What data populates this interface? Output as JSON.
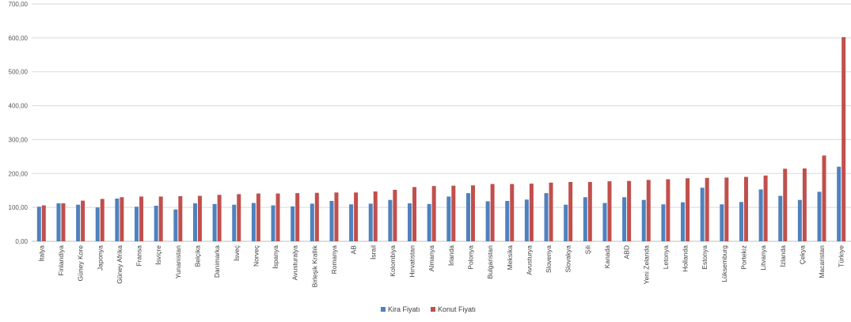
{
  "chart_data": {
    "type": "bar",
    "title": "",
    "xlabel": "",
    "ylabel": "",
    "ylim": [
      0,
      700
    ],
    "yticks": [
      "0,00",
      "100,00",
      "200,00",
      "300,00",
      "400,00",
      "500,00",
      "600,00",
      "700,00"
    ],
    "grid": true,
    "legend_position": "bottom",
    "categories": [
      "İtalya",
      "Finlandiya",
      "Güney Kore",
      "Japonya",
      "Güney Afrika",
      "Fransa",
      "İsviçre",
      "Yunanistan",
      "Belçika",
      "Danimarka",
      "İsveç",
      "Norveç",
      "İspanya",
      "Avusturalya",
      "Birleşik Krallık",
      "Romanya",
      "AB",
      "İsrail",
      "Kolombiya",
      "Hırvatistan",
      "Almanya",
      "İrlanda",
      "Polonya",
      "Bulgaristan",
      "Meksika",
      "Avusturya",
      "Slovenya",
      "Slovakya",
      "Şili",
      "Kanada",
      "ABD",
      "Yeni Zelanda",
      "Letonya",
      "Hollanda",
      "Estonya",
      "Lüksemburg",
      "Portekiz",
      "Litvanya",
      "İzlanda",
      "Çekya",
      "Macaristan",
      "Türkiye"
    ],
    "series": [
      {
        "name": "Kira Fiyatı",
        "color": "#4f81bd",
        "values": [
          102,
          112,
          108,
          100,
          126,
          102,
          105,
          94,
          112,
          110,
          108,
          113,
          106,
          103,
          111,
          119,
          109,
          111,
          122,
          112,
          110,
          132,
          142,
          118,
          119,
          123,
          142,
          108,
          130,
          113,
          130,
          122,
          109,
          115,
          158,
          109,
          116,
          153,
          134,
          122,
          146,
          220
        ]
      },
      {
        "name": "Konut Fiyatı",
        "color": "#c0504d",
        "values": [
          106,
          112,
          120,
          125,
          130,
          132,
          132,
          133,
          134,
          137,
          139,
          141,
          141,
          142,
          143,
          144,
          144,
          147,
          152,
          160,
          163,
          164,
          165,
          169,
          169,
          170,
          173,
          175,
          175,
          177,
          178,
          181,
          183,
          186,
          187,
          188,
          190,
          194,
          214,
          215,
          253,
          602
        ]
      }
    ]
  }
}
